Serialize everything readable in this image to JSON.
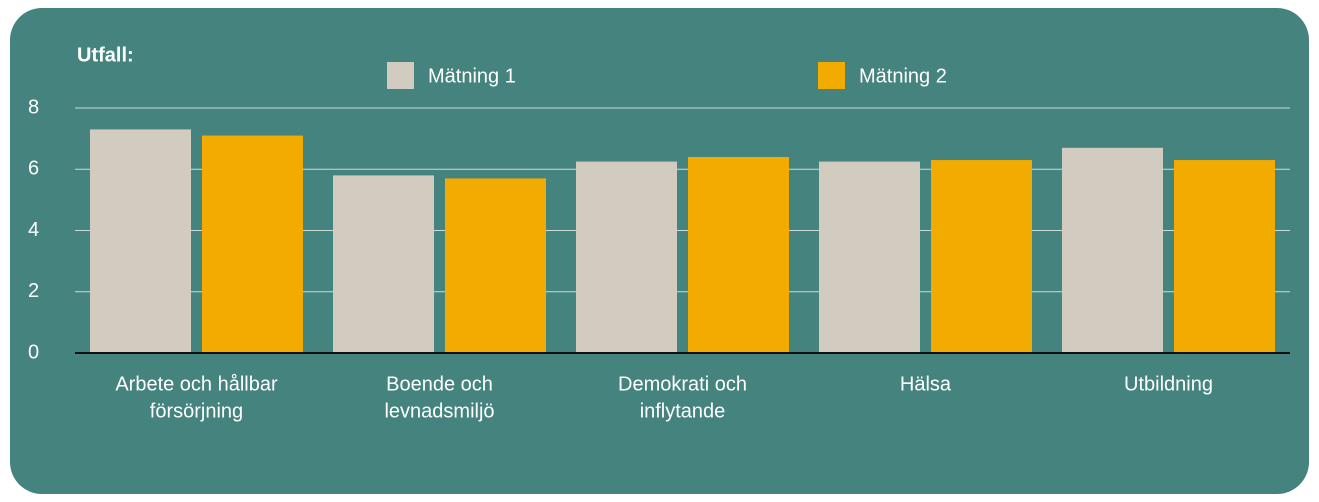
{
  "chart_data": {
    "type": "bar",
    "title": "Utfall:",
    "categories": [
      [
        "Arbete och hållbar",
        "försörjning"
      ],
      [
        "Boende och",
        "levnadsmiljö"
      ],
      [
        "Demokrati och",
        "inflytande"
      ],
      [
        "Hälsa"
      ],
      [
        "Utbildning"
      ]
    ],
    "series": [
      {
        "name": "Mätning 1",
        "color": "#d1cbc0",
        "values": [
          7.3,
          5.8,
          6.25,
          6.25,
          6.7
        ]
      },
      {
        "name": "Mätning 2",
        "color": "#f2ab00",
        "values": [
          7.1,
          5.7,
          6.4,
          6.3,
          6.3
        ]
      }
    ],
    "ylim": [
      0,
      8
    ],
    "yticks": [
      0,
      2,
      4,
      6,
      8
    ],
    "grid": true
  }
}
